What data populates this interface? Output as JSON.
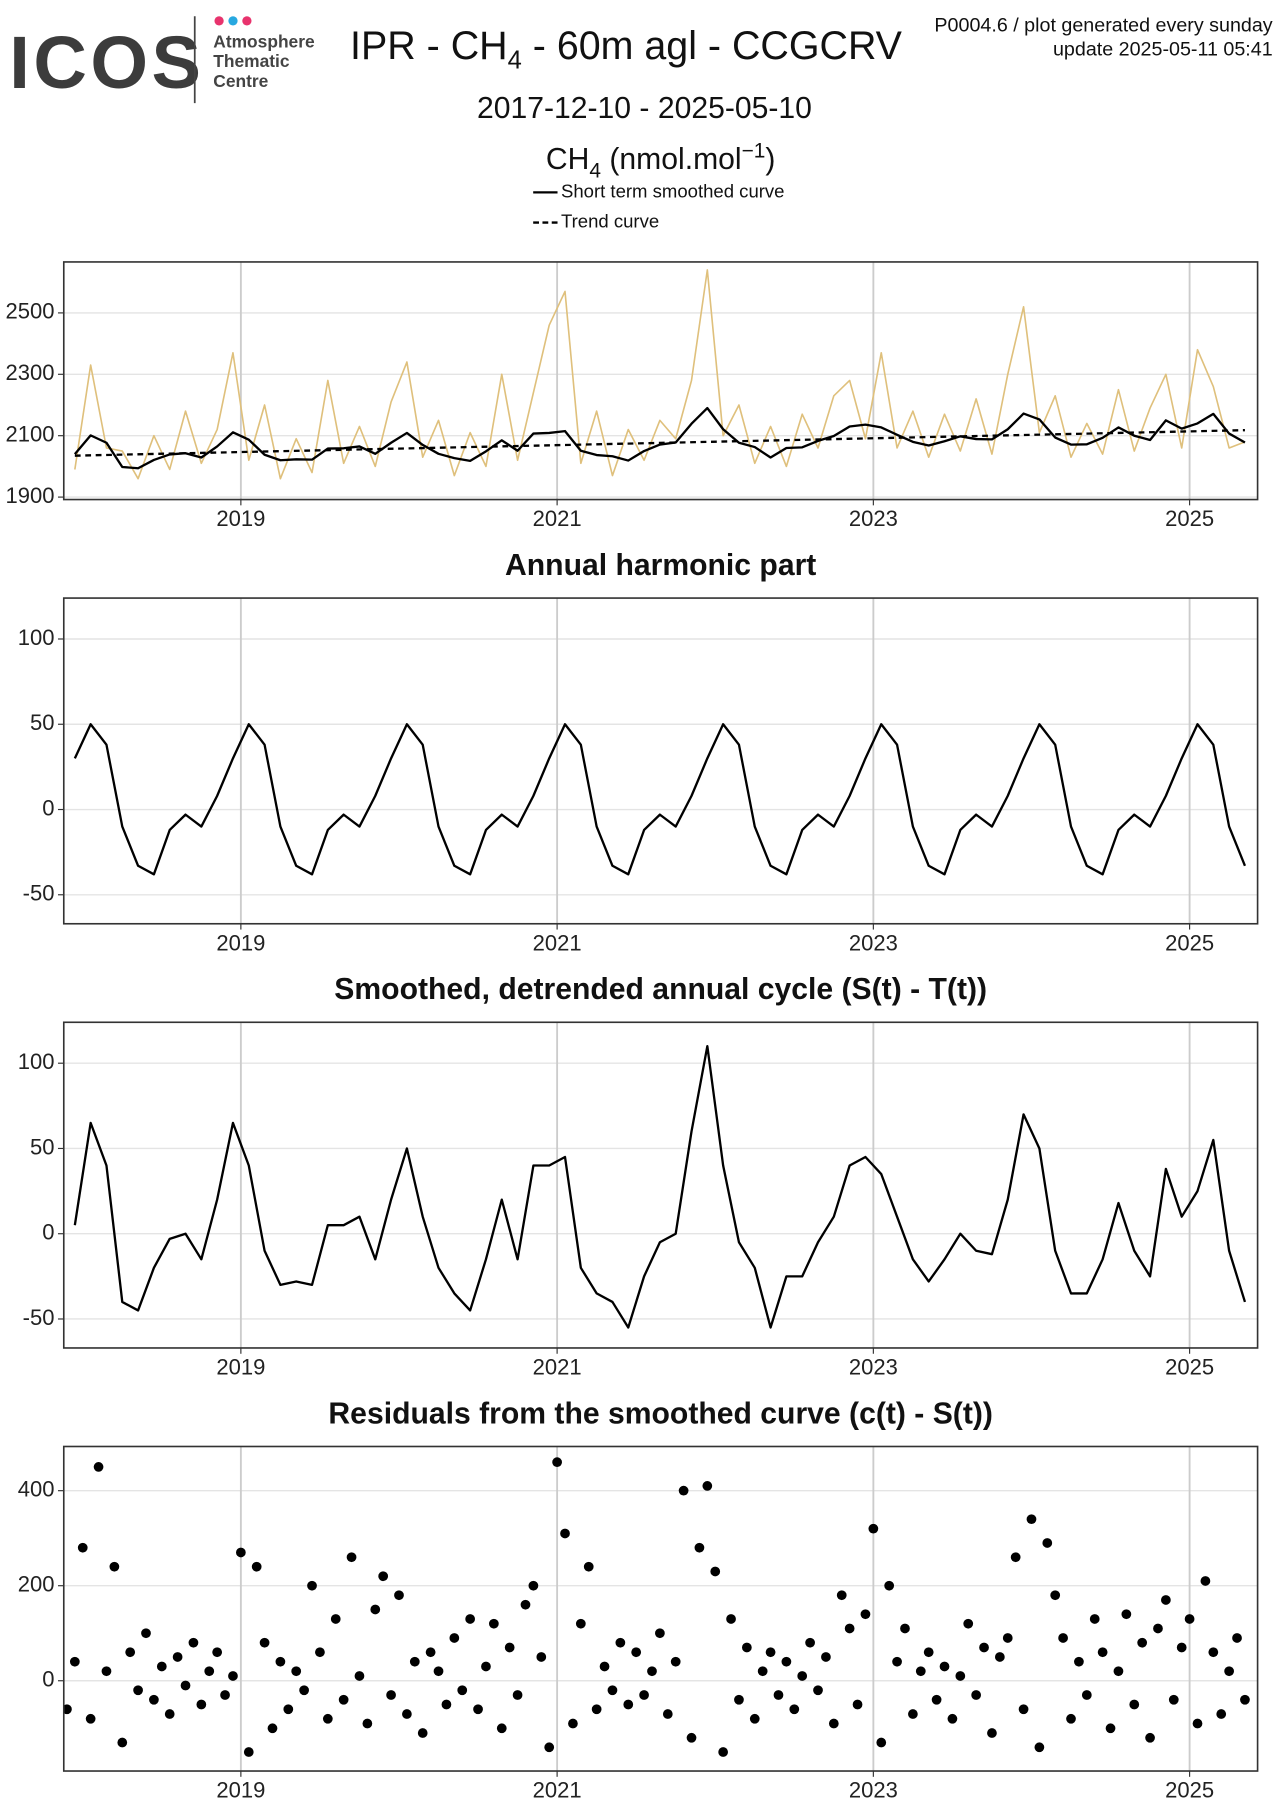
{
  "header": {
    "logo": "ICOS",
    "logo_lines": [
      "Atmosphere",
      "Thematic",
      "Centre"
    ],
    "title": [
      "IPR - CH",
      "4",
      " - 60m agl - CCGCRV"
    ],
    "note": "P0004.6 / plot generated every sunday",
    "update": "update  2025-05-11 05:41",
    "period": "2017-12-10 - 2025-05-10"
  },
  "chart_data": [
    {
      "type": "line",
      "ylabel": [
        "CH",
        "4",
        " (nmol.mol",
        "−1",
        ")"
      ],
      "x": [
        2017.95,
        2018.05,
        2018.15,
        2018.25,
        2018.35,
        2018.45,
        2018.55,
        2018.65,
        2018.75,
        2018.85,
        2018.95,
        2019.05,
        2019.15,
        2019.25,
        2019.35,
        2019.45,
        2019.55,
        2019.65,
        2019.75,
        2019.85,
        2019.95,
        2020.05,
        2020.15,
        2020.25,
        2020.35,
        2020.45,
        2020.55,
        2020.65,
        2020.75,
        2020.85,
        2020.95,
        2021.05,
        2021.15,
        2021.25,
        2021.35,
        2021.45,
        2021.55,
        2021.65,
        2021.75,
        2021.85,
        2021.95,
        2022.05,
        2022.15,
        2022.25,
        2022.35,
        2022.45,
        2022.55,
        2022.65,
        2022.75,
        2022.85,
        2022.95,
        2023.05,
        2023.15,
        2023.25,
        2023.35,
        2023.45,
        2023.55,
        2023.65,
        2023.75,
        2023.85,
        2023.95,
        2024.05,
        2024.15,
        2024.25,
        2024.35,
        2024.45,
        2024.55,
        2024.65,
        2024.75,
        2024.85,
        2024.95,
        2025.05,
        2025.15,
        2025.25,
        2025.35
      ],
      "series": [
        {
          "color": "#dfc07c",
          "values": [
            1990,
            2330,
            2060,
            2050,
            1960,
            2100,
            1990,
            2180,
            2010,
            2120,
            2370,
            2020,
            2200,
            1960,
            2090,
            1980,
            2280,
            2010,
            2130,
            2000,
            2210,
            2340,
            2030,
            2150,
            1970,
            2110,
            2000,
            2300,
            2020,
            2240,
            2460,
            2570,
            2010,
            2180,
            1970,
            2120,
            2020,
            2150,
            2090,
            2280,
            2640,
            2100,
            2200,
            2010,
            2130,
            2000,
            2170,
            2060,
            2230,
            2280,
            2090,
            2370,
            2060,
            2180,
            2030,
            2170,
            2050,
            2220,
            2040,
            2300,
            2520,
            2110,
            2230,
            2030,
            2140,
            2040,
            2250,
            2050,
            2190,
            2300,
            2060,
            2380,
            2260,
            2060,
            2080
          ]
        },
        {
          "name": "Short term smoothed curve",
          "color": "#000000",
          "linestyle": "solid",
          "values": [
            2040,
            2101,
            2077,
            1998,
            1994,
            2021,
            2039,
            2043,
            2029,
            2065,
            2111,
            2087,
            2038,
            2020,
            2023,
            2022,
            2058,
            2059,
            2065,
            2041,
            2077,
            2109,
            2070,
            2041,
            2027,
            2018,
            2049,
            2085,
            2051,
            2107,
            2109,
            2115,
            2051,
            2037,
            2033,
            2019,
            2050,
            2071,
            2078,
            2139,
            2190,
            2121,
            2077,
            2063,
            2029,
            2060,
            2062,
            2083,
            2099,
            2130,
            2136,
            2127,
            2103,
            2080,
            2068,
            2082,
            2098,
            2089,
            2088,
            2121,
            2172,
            2153,
            2094,
            2071,
            2072,
            2093,
            2127,
            2100,
            2086,
            2150,
            2123,
            2140,
            2171,
            2107,
            2078
          ]
        },
        {
          "name": "Trend curve",
          "color": "#000000",
          "linestyle": "dashed",
          "x": [
            2017.95,
            2025.35
          ],
          "values": [
            2035,
            2118
          ]
        }
      ],
      "xlim": [
        2017.88,
        2025.43
      ],
      "xticks": [
        2019,
        2021,
        2023,
        2025
      ],
      "ylim": [
        1892,
        2666
      ],
      "yticks": [
        1900,
        2100,
        2300,
        2500
      ],
      "grid": true
    },
    {
      "type": "line",
      "title": "Annual harmonic part",
      "x": [
        2017.95,
        2018.05,
        2018.15,
        2018.25,
        2018.35,
        2018.45,
        2018.55,
        2018.65,
        2018.75,
        2018.85,
        2018.95,
        2019.05,
        2019.15,
        2019.25,
        2019.35,
        2019.45,
        2019.55,
        2019.65,
        2019.75,
        2019.85,
        2019.95,
        2020.05,
        2020.15,
        2020.25,
        2020.35,
        2020.45,
        2020.55,
        2020.65,
        2020.75,
        2020.85,
        2020.95,
        2021.05,
        2021.15,
        2021.25,
        2021.35,
        2021.45,
        2021.55,
        2021.65,
        2021.75,
        2021.85,
        2021.95,
        2022.05,
        2022.15,
        2022.25,
        2022.35,
        2022.45,
        2022.55,
        2022.65,
        2022.75,
        2022.85,
        2022.95,
        2023.05,
        2023.15,
        2023.25,
        2023.35,
        2023.45,
        2023.55,
        2023.65,
        2023.75,
        2023.85,
        2023.95,
        2024.05,
        2024.15,
        2024.25,
        2024.35,
        2024.45,
        2024.55,
        2024.65,
        2024.75,
        2024.85,
        2024.95,
        2025.05,
        2025.15,
        2025.25,
        2025.35
      ],
      "series": [
        {
          "color": "#000000",
          "linestyle": "solid",
          "values": [
            30,
            50,
            38,
            -10,
            -33,
            -38,
            -12,
            -3,
            -10,
            8,
            30,
            50,
            38,
            -10,
            -33,
            -38,
            -12,
            -3,
            -10,
            8,
            30,
            50,
            38,
            -10,
            -33,
            -38,
            -12,
            -3,
            -10,
            8,
            30,
            50,
            38,
            -10,
            -33,
            -38,
            -12,
            -3,
            -10,
            8,
            30,
            50,
            38,
            -10,
            -33,
            -38,
            -12,
            -3,
            -10,
            8,
            30,
            50,
            38,
            -10,
            -33,
            -38,
            -12,
            -3,
            -10,
            8,
            30,
            50,
            38,
            -10,
            -33,
            -38,
            -12,
            -3,
            -10,
            8,
            30,
            50,
            38,
            -10,
            -33
          ]
        }
      ],
      "xlim": [
        2017.88,
        2025.43
      ],
      "xticks": [
        2019,
        2021,
        2023,
        2025
      ],
      "ylim": [
        -67,
        124
      ],
      "yticks": [
        -50,
        0,
        50,
        100
      ],
      "grid": true
    },
    {
      "type": "line",
      "title": "Smoothed, detrended annual cycle (S(t) - T(t))",
      "x": [
        2017.95,
        2018.05,
        2018.15,
        2018.25,
        2018.35,
        2018.45,
        2018.55,
        2018.65,
        2018.75,
        2018.85,
        2018.95,
        2019.05,
        2019.15,
        2019.25,
        2019.35,
        2019.45,
        2019.55,
        2019.65,
        2019.75,
        2019.85,
        2019.95,
        2020.05,
        2020.15,
        2020.25,
        2020.35,
        2020.45,
        2020.55,
        2020.65,
        2020.75,
        2020.85,
        2020.95,
        2021.05,
        2021.15,
        2021.25,
        2021.35,
        2021.45,
        2021.55,
        2021.65,
        2021.75,
        2021.85,
        2021.95,
        2022.05,
        2022.15,
        2022.25,
        2022.35,
        2022.45,
        2022.55,
        2022.65,
        2022.75,
        2022.85,
        2022.95,
        2023.05,
        2023.15,
        2023.25,
        2023.35,
        2023.45,
        2023.55,
        2023.65,
        2023.75,
        2023.85,
        2023.95,
        2024.05,
        2024.15,
        2024.25,
        2024.35,
        2024.45,
        2024.55,
        2024.65,
        2024.75,
        2024.85,
        2024.95,
        2025.05,
        2025.15,
        2025.25,
        2025.35
      ],
      "series": [
        {
          "color": "#000000",
          "linestyle": "solid",
          "values": [
            5,
            65,
            40,
            -40,
            -45,
            -20,
            -3,
            0,
            -15,
            20,
            65,
            40,
            -10,
            -30,
            -28,
            -30,
            5,
            5,
            10,
            -15,
            20,
            50,
            10,
            -20,
            -35,
            -45,
            -15,
            20,
            -15,
            40,
            40,
            45,
            -20,
            -35,
            -40,
            -55,
            -25,
            -5,
            0,
            60,
            110,
            40,
            -5,
            -20,
            -55,
            -25,
            -25,
            -5,
            10,
            40,
            45,
            35,
            10,
            -15,
            -28,
            -15,
            0,
            -10,
            -12,
            20,
            70,
            50,
            -10,
            -35,
            -35,
            -15,
            18,
            -10,
            -25,
            38,
            10,
            25,
            55,
            -10,
            -40
          ]
        }
      ],
      "xlim": [
        2017.88,
        2025.43
      ],
      "xticks": [
        2019,
        2021,
        2023,
        2025
      ],
      "ylim": [
        -67,
        124
      ],
      "yticks": [
        -50,
        0,
        50,
        100
      ],
      "grid": true
    },
    {
      "type": "scatter",
      "title": "Residuals from the smoothed curve (c(t) - S(t))",
      "x": [
        2017.9,
        2017.95,
        2018,
        2018.05,
        2018.1,
        2018.15,
        2018.2,
        2018.25,
        2018.3,
        2018.35,
        2018.4,
        2018.45,
        2018.5,
        2018.55,
        2018.6,
        2018.65,
        2018.7,
        2018.75,
        2018.8,
        2018.85,
        2018.9,
        2018.95,
        2019,
        2019.05,
        2019.1,
        2019.15,
        2019.2,
        2019.25,
        2019.3,
        2019.35,
        2019.4,
        2019.45,
        2019.5,
        2019.55,
        2019.6,
        2019.65,
        2019.7,
        2019.75,
        2019.8,
        2019.85,
        2019.9,
        2019.95,
        2020,
        2020.05,
        2020.1,
        2020.15,
        2020.2,
        2020.25,
        2020.3,
        2020.35,
        2020.4,
        2020.45,
        2020.5,
        2020.55,
        2020.6,
        2020.65,
        2020.7,
        2020.75,
        2020.8,
        2020.85,
        2020.9,
        2020.95,
        2021,
        2021.05,
        2021.1,
        2021.15,
        2021.2,
        2021.25,
        2021.3,
        2021.35,
        2021.4,
        2021.45,
        2021.5,
        2021.55,
        2021.6,
        2021.65,
        2021.7,
        2021.75,
        2021.8,
        2021.85,
        2021.9,
        2021.95,
        2022,
        2022.05,
        2022.1,
        2022.15,
        2022.2,
        2022.25,
        2022.3,
        2022.35,
        2022.4,
        2022.45,
        2022.5,
        2022.55,
        2022.6,
        2022.65,
        2022.7,
        2022.75,
        2022.8,
        2022.85,
        2022.9,
        2022.95,
        2023,
        2023.05,
        2023.1,
        2023.15,
        2023.2,
        2023.25,
        2023.3,
        2023.35,
        2023.4,
        2023.45,
        2023.5,
        2023.55,
        2023.6,
        2023.65,
        2023.7,
        2023.75,
        2023.8,
        2023.85,
        2023.9,
        2023.95,
        2024,
        2024.05,
        2024.1,
        2024.15,
        2024.2,
        2024.25,
        2024.3,
        2024.35,
        2024.4,
        2024.45,
        2024.5,
        2024.55,
        2024.6,
        2024.65,
        2024.7,
        2024.75,
        2024.8,
        2024.85,
        2024.9,
        2024.95,
        2025,
        2025.05,
        2025.1,
        2025.15,
        2025.2,
        2025.25,
        2025.3,
        2025.35
      ],
      "series": [
        {
          "color": "#000000",
          "values": [
            -60,
            40,
            280,
            -80,
            450,
            20,
            240,
            -130,
            60,
            -20,
            100,
            -40,
            30,
            -70,
            50,
            -10,
            80,
            -50,
            20,
            60,
            -30,
            10,
            270,
            -150,
            240,
            80,
            -100,
            40,
            -60,
            20,
            -20,
            200,
            60,
            -80,
            130,
            -40,
            260,
            10,
            -90,
            150,
            220,
            -30,
            180,
            -70,
            40,
            -110,
            60,
            20,
            -50,
            90,
            -20,
            130,
            -60,
            30,
            120,
            -100,
            70,
            -30,
            160,
            200,
            50,
            -140,
            460,
            310,
            -90,
            120,
            240,
            -60,
            30,
            -20,
            80,
            -50,
            60,
            -30,
            20,
            100,
            -70,
            40,
            400,
            -120,
            280,
            410,
            230,
            -150,
            130,
            -40,
            70,
            -80,
            20,
            60,
            -30,
            40,
            -60,
            10,
            80,
            -20,
            50,
            -90,
            180,
            110,
            -50,
            140,
            320,
            -130,
            200,
            40,
            110,
            -70,
            20,
            60,
            -40,
            30,
            -80,
            10,
            120,
            -30,
            70,
            -110,
            50,
            90,
            260,
            -60,
            340,
            -140,
            290,
            180,
            90,
            -80,
            40,
            -30,
            130,
            60,
            -100,
            20,
            140,
            -50,
            80,
            -120,
            110,
            170,
            -40,
            70,
            130,
            -90,
            210,
            60,
            -70,
            20,
            90,
            -40
          ]
        }
      ],
      "xlim": [
        2017.88,
        2025.43
      ],
      "xticks": [
        2019,
        2021,
        2023,
        2025
      ],
      "ylim": [
        -190,
        493
      ],
      "yticks": [
        0,
        200,
        400
      ],
      "grid": true
    }
  ]
}
